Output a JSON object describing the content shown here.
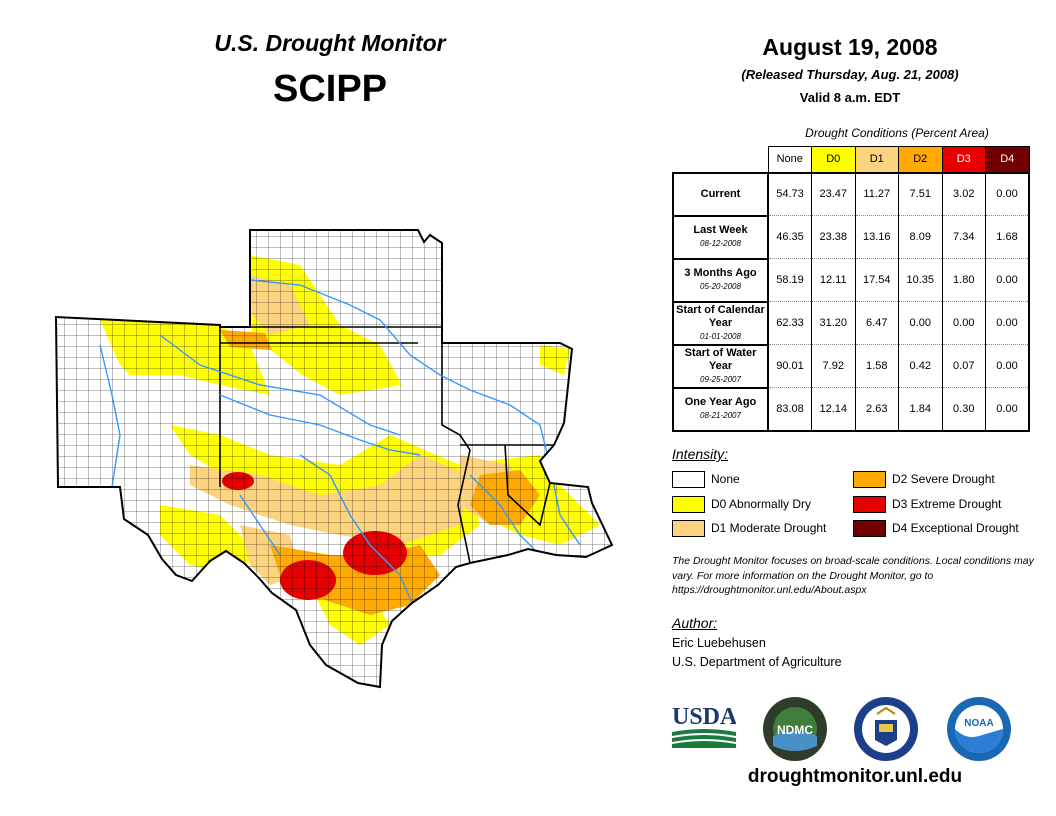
{
  "title": "U.S. Drought Monitor",
  "region": "SCIPP",
  "date": "August 19, 2008",
  "released": "(Released Thursday, Aug. 21, 2008)",
  "valid": "Valid 8 a.m. EDT",
  "conditions_caption": "Drought Conditions (Percent Area)",
  "colors": {
    "None": "#ffffff",
    "D0": "#ffff00",
    "D1": "#fcd37f",
    "D2": "#ffaa00",
    "D3": "#e60000",
    "D4": "#730000"
  },
  "table": {
    "columns": [
      "None",
      "D0",
      "D1",
      "D2",
      "D3",
      "D4"
    ],
    "rows": [
      {
        "label": "Current",
        "date": "",
        "values": [
          "54.73",
          "23.47",
          "11.27",
          "7.51",
          "3.02",
          "0.00"
        ]
      },
      {
        "label": "Last Week",
        "date": "08-12-2008",
        "values": [
          "46.35",
          "23.38",
          "13.16",
          "8.09",
          "7.34",
          "1.68"
        ]
      },
      {
        "label": "3 Months Ago",
        "date": "05-20-2008",
        "values": [
          "58.19",
          "12.11",
          "17.54",
          "10.35",
          "1.80",
          "0.00"
        ]
      },
      {
        "label": "Start of Calendar Year",
        "date": "01-01-2008",
        "values": [
          "62.33",
          "31.20",
          "6.47",
          "0.00",
          "0.00",
          "0.00"
        ]
      },
      {
        "label": "Start of Water Year",
        "date": "09-25-2007",
        "values": [
          "90.01",
          "7.92",
          "1.58",
          "0.42",
          "0.07",
          "0.00"
        ]
      },
      {
        "label": "One Year Ago",
        "date": "08-21-2007",
        "values": [
          "83.08",
          "12.14",
          "2.63",
          "1.84",
          "0.30",
          "0.00"
        ]
      }
    ]
  },
  "intensity_heading": "Intensity:",
  "legend": [
    {
      "code": "None",
      "label": "None"
    },
    {
      "code": "D0",
      "label": "D0 Abnormally Dry"
    },
    {
      "code": "D1",
      "label": "D1 Moderate Drought"
    },
    {
      "code": "D2",
      "label": "D2 Severe Drought"
    },
    {
      "code": "D3",
      "label": "D3 Extreme Drought"
    },
    {
      "code": "D4",
      "label": "D4 Exceptional Drought"
    }
  ],
  "note": "The Drought Monitor focuses on broad-scale conditions. Local conditions may vary. For more information on the Drought Monitor, go to https://droughtmonitor.unl.edu/About.aspx",
  "author_heading": "Author:",
  "author_name": "Eric Luebehusen",
  "author_org": "U.S. Department of Agriculture",
  "logos": [
    {
      "name": "usda-logo",
      "text": "USDA"
    },
    {
      "name": "ndmc-logo",
      "text": "NDMC"
    },
    {
      "name": "doc-logo",
      "text": ""
    },
    {
      "name": "noaa-logo",
      "text": "NOAA"
    }
  ],
  "footer_url": "droughtmonitor.unl.edu"
}
